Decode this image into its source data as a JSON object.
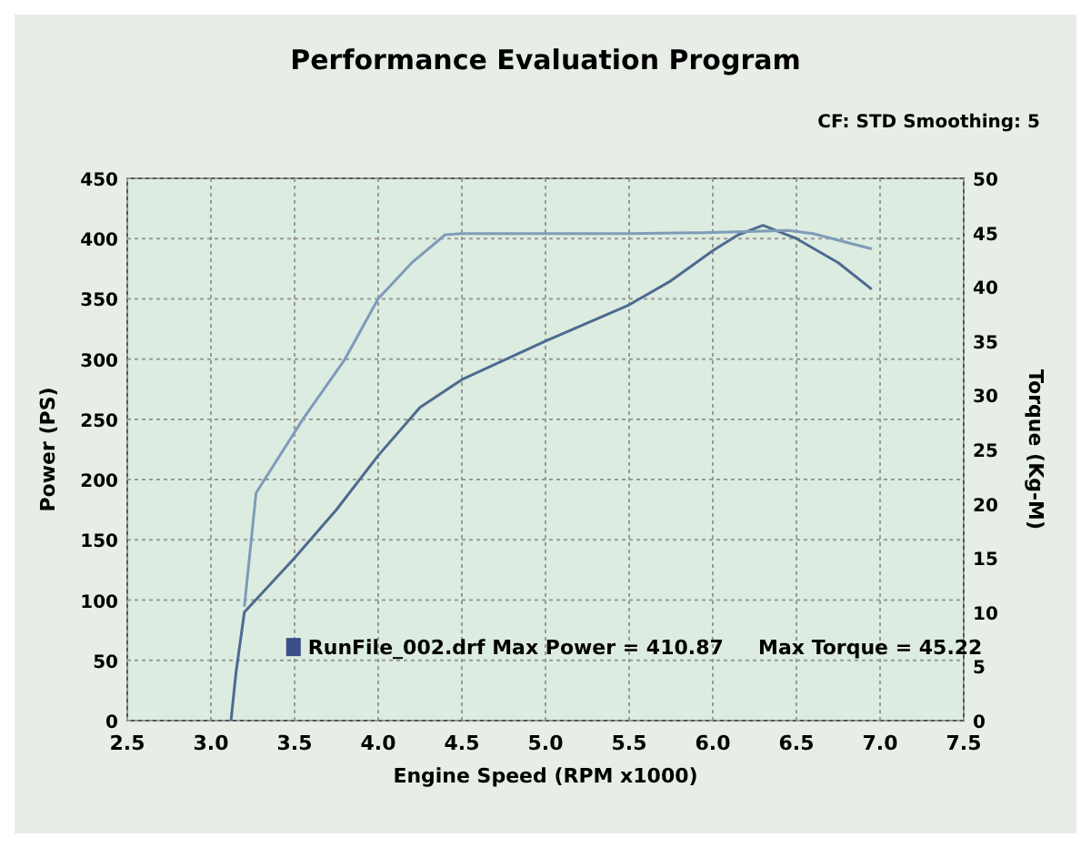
{
  "chart_data": {
    "type": "line",
    "title": "Performance Evaluation Program",
    "xlabel": "Engine Speed (RPM x1000)",
    "ylabel": "Power (PS)",
    "y2label": "Torque (Kg-M)",
    "annotations": [
      "CF: STD  Smoothing: 5",
      "RunFile_002.drf Max Power = 410.87     Max Torque = 45.22"
    ],
    "xlim": [
      2.5,
      7.5
    ],
    "xticks": [
      {
        "value": 2.5,
        "label": "2.5"
      },
      {
        "value": 3,
        "label": "3.0"
      },
      {
        "value": 3.5,
        "label": "3.5"
      },
      {
        "value": 4,
        "label": "4.0"
      },
      {
        "value": 4.5,
        "label": "4.5"
      },
      {
        "value": 5,
        "label": "5.0"
      },
      {
        "value": 5.5,
        "label": "5.5"
      },
      {
        "value": 6,
        "label": "6.0"
      },
      {
        "value": 6.5,
        "label": "6.5"
      },
      {
        "value": 7,
        "label": "7.0"
      },
      {
        "value": 7.5,
        "label": "7.5"
      }
    ],
    "ylim": [
      0,
      450
    ],
    "yticks": [
      0,
      50,
      100,
      150,
      200,
      250,
      300,
      350,
      400,
      450
    ],
    "y2lim": [
      0,
      50
    ],
    "y2ticks": [
      0,
      5,
      10,
      15,
      20,
      25,
      30,
      35,
      40,
      45,
      50
    ],
    "grid": true,
    "line_style": "solid",
    "series": [
      {
        "color": "#4e6a90",
        "x": [
          3.12,
          3.15,
          3.2,
          3.3,
          3.5,
          3.75,
          4.0,
          4.25,
          4.5,
          5.0,
          5.5,
          5.75,
          6.0,
          6.15,
          6.3,
          6.5,
          6.75,
          6.95
        ],
        "values": [
          0,
          40,
          90,
          105,
          135,
          175,
          220,
          260,
          283,
          315,
          345,
          365,
          390,
          403,
          411,
          400,
          380,
          358
        ]
      },
      {
        "color": "#7f9bb8",
        "axis": "y2",
        "x": [
          3.2,
          3.27,
          3.55,
          3.8,
          4.0,
          4.2,
          4.4,
          4.5,
          5.0,
          5.5,
          6.0,
          6.45,
          6.6,
          6.75,
          6.95
        ],
        "values": [
          10.5,
          21,
          27.8,
          33.3,
          38.9,
          42.2,
          44.8,
          44.9,
          44.9,
          44.9,
          45,
          45.2,
          44.9,
          44.3,
          43.5
        ]
      }
    ]
  }
}
